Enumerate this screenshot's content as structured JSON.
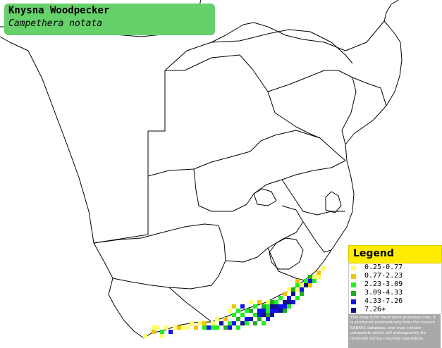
{
  "title": {
    "common_name": "Knysna Woodpecker",
    "scientific_name": "Campethera notata"
  },
  "legend": {
    "heading": "Legend",
    "items": [
      {
        "label": "0.25-0.77",
        "color": "#ffff66"
      },
      {
        "label": "0.77-2.23",
        "color": "#f0c400"
      },
      {
        "label": "2.23-3.09",
        "color": "#22ee22"
      },
      {
        "label": "3.09-4.33",
        "color": "#22aa22"
      },
      {
        "label": "4.33-7.26",
        "color": "#1111ee"
      },
      {
        "label": "7.26+",
        "color": "#111188"
      }
    ],
    "disclaimer": "This map is for illustrative purposes only; it is produced automatically from the current SABAP2 database, and may contain datapoints which will subsequently be removed during checking operations."
  },
  "map": {
    "border_color": "#000000",
    "land_color": "#ffffff"
  }
}
